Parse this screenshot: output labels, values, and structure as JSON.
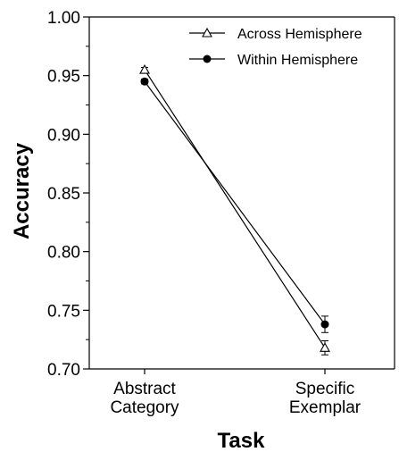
{
  "chart_data": {
    "type": "line",
    "xlabel": "Task",
    "ylabel": "Accuracy",
    "categories": [
      [
        "Abstract",
        "Category"
      ],
      [
        "Specific",
        "Exemplar"
      ]
    ],
    "ylim": [
      0.7,
      1.0
    ],
    "yticks": [
      "0.70",
      "0.75",
      "0.80",
      "0.85",
      "0.90",
      "0.95",
      "1.00"
    ],
    "grid": false,
    "legend_position": "top-right",
    "series": [
      {
        "name": "Across Hemisphere",
        "marker": "open-triangle",
        "values": [
          0.955,
          0.718
        ],
        "errors": [
          0.002,
          0.006
        ]
      },
      {
        "name": "Within Hemisphere",
        "marker": "filled-circle",
        "values": [
          0.945,
          0.738
        ],
        "errors": [
          0.002,
          0.007
        ]
      }
    ]
  }
}
